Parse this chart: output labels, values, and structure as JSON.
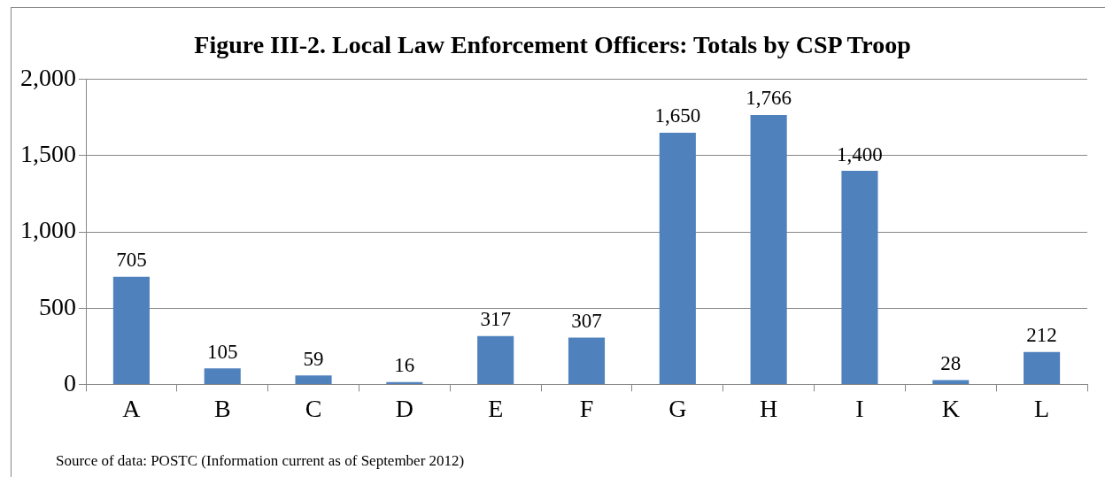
{
  "chart_data": {
    "type": "bar",
    "title": "Figure III-2. Local Law Enforcement Officers: Totals by CSP Troop",
    "categories": [
      "A",
      "B",
      "C",
      "D",
      "E",
      "F",
      "G",
      "H",
      "I",
      "K",
      "L"
    ],
    "values": [
      705,
      105,
      59,
      16,
      317,
      307,
      1650,
      1766,
      1400,
      28,
      212
    ],
    "color": "#4f81bd",
    "value_labels": [
      "705",
      "105",
      "59",
      "16",
      "317",
      "307",
      "1,650",
      "1,766",
      "1,400",
      "28",
      "212"
    ],
    "ylim": [
      0,
      2000
    ],
    "yticks": [
      0,
      500,
      {
        "value": 1000,
        "label": "1,000"
      },
      {
        "value": 1500,
        "label": "1,500"
      },
      {
        "value": 2000,
        "label": "2,000"
      }
    ],
    "grid": "y",
    "legend": false,
    "annotations": [
      "Source of data: POSTC (Information current as of September 2012)"
    ]
  }
}
